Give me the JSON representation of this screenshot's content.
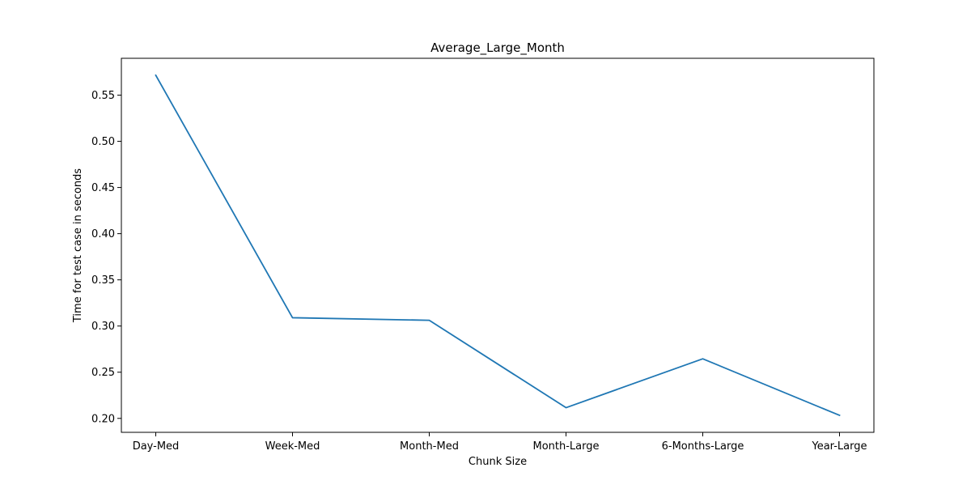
{
  "chart_data": {
    "type": "line",
    "title": "Average_Large_Month",
    "xlabel": "Chunk Size",
    "ylabel": "Time for test case in seconds",
    "categories": [
      "Day-Med",
      "Week-Med",
      "Month-Med",
      "Month-Large",
      "6-Months-Large",
      "Year-Large"
    ],
    "series": [
      {
        "values": [
          0.5715,
          0.309,
          0.3062,
          0.2116,
          0.2645,
          0.2033
        ]
      }
    ],
    "yticks": [
      0.2,
      0.25,
      0.3,
      0.35,
      0.4,
      0.45,
      0.5,
      0.55
    ],
    "ytick_labels": [
      "0.20",
      "0.25",
      "0.30",
      "0.35",
      "0.40",
      "0.45",
      "0.50",
      "0.55"
    ],
    "ylim": [
      0.1849,
      0.5899
    ],
    "grid": false,
    "legend": "none",
    "line_color": "#1f77b4"
  }
}
